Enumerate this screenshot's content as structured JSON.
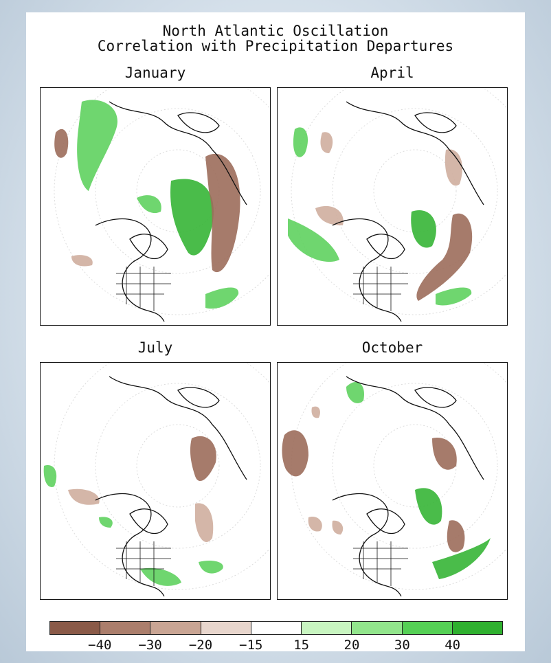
{
  "title_line1": "North Atlantic Oscillation",
  "title_line2": "Correlation with Precipitation Departures",
  "panels": [
    {
      "title": "January"
    },
    {
      "title": "April"
    },
    {
      "title": "July"
    },
    {
      "title": "October"
    }
  ],
  "legend": {
    "colors": [
      "#8a5a48",
      "#ab7e6c",
      "#c9a594",
      "#e8d6cd",
      "#ffffff",
      "#c8f5c0",
      "#92e58c",
      "#55d055",
      "#2fb02f"
    ],
    "labels": [
      "−40",
      "−30",
      "−20",
      "−15",
      "15",
      "20",
      "30",
      "40"
    ]
  },
  "colors": {
    "negative": "#9c6d5b",
    "negative_light": "#cfae9f",
    "positive": "#5fd25f",
    "positive_dark": "#36b536",
    "positive_light": "#a8ea9e"
  }
}
